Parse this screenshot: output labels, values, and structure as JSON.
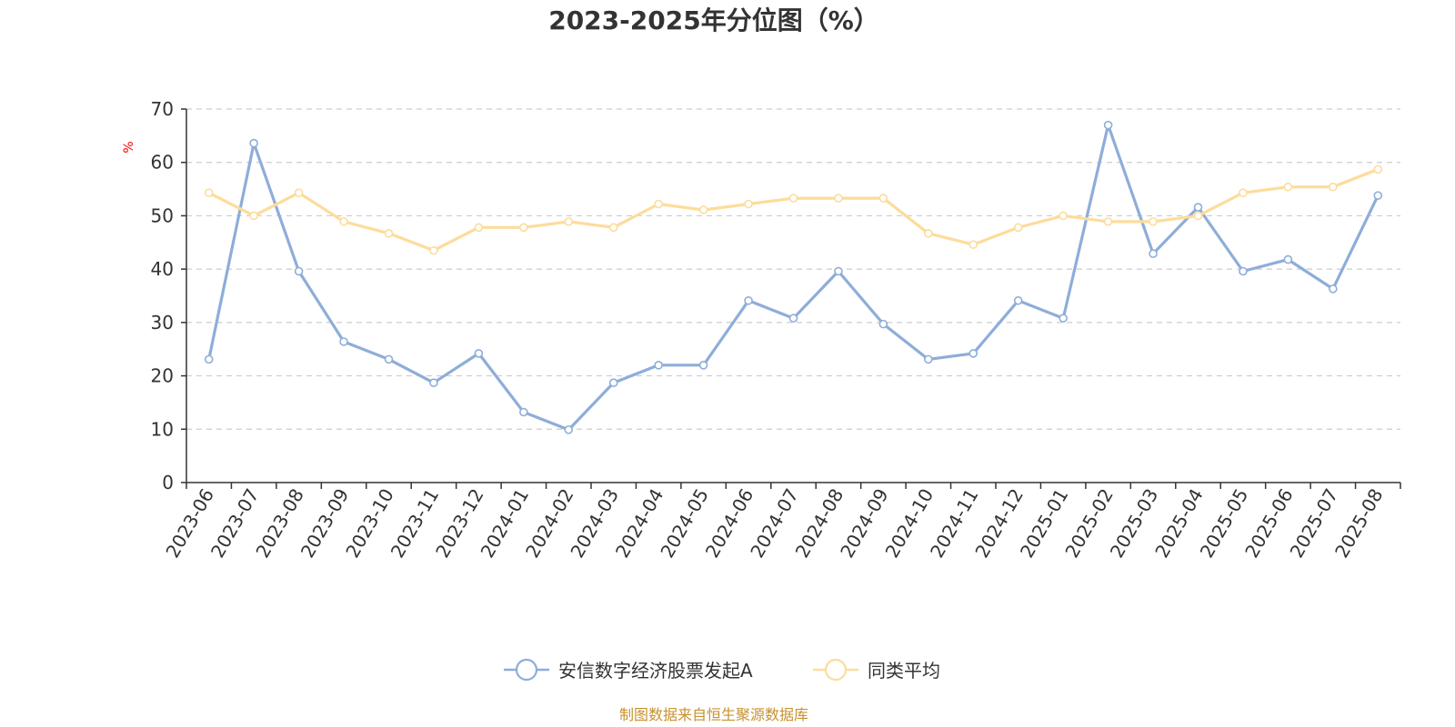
{
  "chart_data": {
    "type": "line",
    "title": "2023-2025年分位图（%）",
    "ylabel": "%",
    "xlabel": "",
    "ylim": [
      0,
      70
    ],
    "yticks": [
      0,
      10,
      20,
      30,
      40,
      50,
      60,
      70
    ],
    "grid": true,
    "legend_position": "bottom-center",
    "categories": [
      "2023-06",
      "2023-07",
      "2023-08",
      "2023-09",
      "2023-10",
      "2023-11",
      "2023-12",
      "2024-01",
      "2024-02",
      "2024-03",
      "2024-04",
      "2024-05",
      "2024-06",
      "2024-07",
      "2024-08",
      "2024-09",
      "2024-10",
      "2024-11",
      "2024-12",
      "2025-01",
      "2025-02",
      "2025-03",
      "2025-04",
      "2025-05",
      "2025-06",
      "2025-07",
      "2025-08"
    ],
    "series": [
      {
        "name": "安信数字经济股票发起A",
        "color": "#8eadd9",
        "values": [
          23.1,
          63.6,
          39.6,
          26.4,
          23.1,
          18.7,
          24.2,
          13.2,
          9.9,
          18.7,
          22.0,
          22.0,
          34.1,
          30.8,
          39.6,
          29.7,
          23.1,
          24.2,
          34.1,
          30.8,
          67.0,
          42.9,
          51.6,
          39.6,
          41.8,
          36.3,
          53.8
        ]
      },
      {
        "name": "同类平均",
        "color": "#fddc9b",
        "values": [
          54.3,
          50.0,
          54.3,
          48.9,
          46.7,
          43.5,
          47.8,
          47.8,
          48.9,
          47.8,
          52.2,
          51.1,
          52.2,
          53.3,
          53.3,
          53.3,
          46.7,
          44.6,
          47.8,
          50.0,
          48.9,
          48.9,
          50.0,
          54.3,
          55.4,
          55.4,
          58.7
        ]
      }
    ]
  },
  "source": "制图数据来自恒生聚源数据库",
  "colors": {
    "axis": "#333333",
    "grid": "#cccccc",
    "ylabel": "#ff0000",
    "source": "#c8912e"
  }
}
